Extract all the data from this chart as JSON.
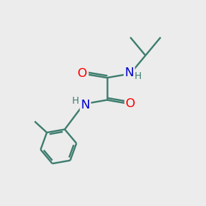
{
  "background_color": "#ececec",
  "bond_color": "#3d7d6e",
  "bond_width": 1.8,
  "atom_colors": {
    "O": "#ff0000",
    "N": "#0000cc",
    "H_upper": "#3d7d6e",
    "H_lower": "#3d7d6e"
  },
  "figsize": [
    3.0,
    3.0
  ],
  "dpi": 100
}
